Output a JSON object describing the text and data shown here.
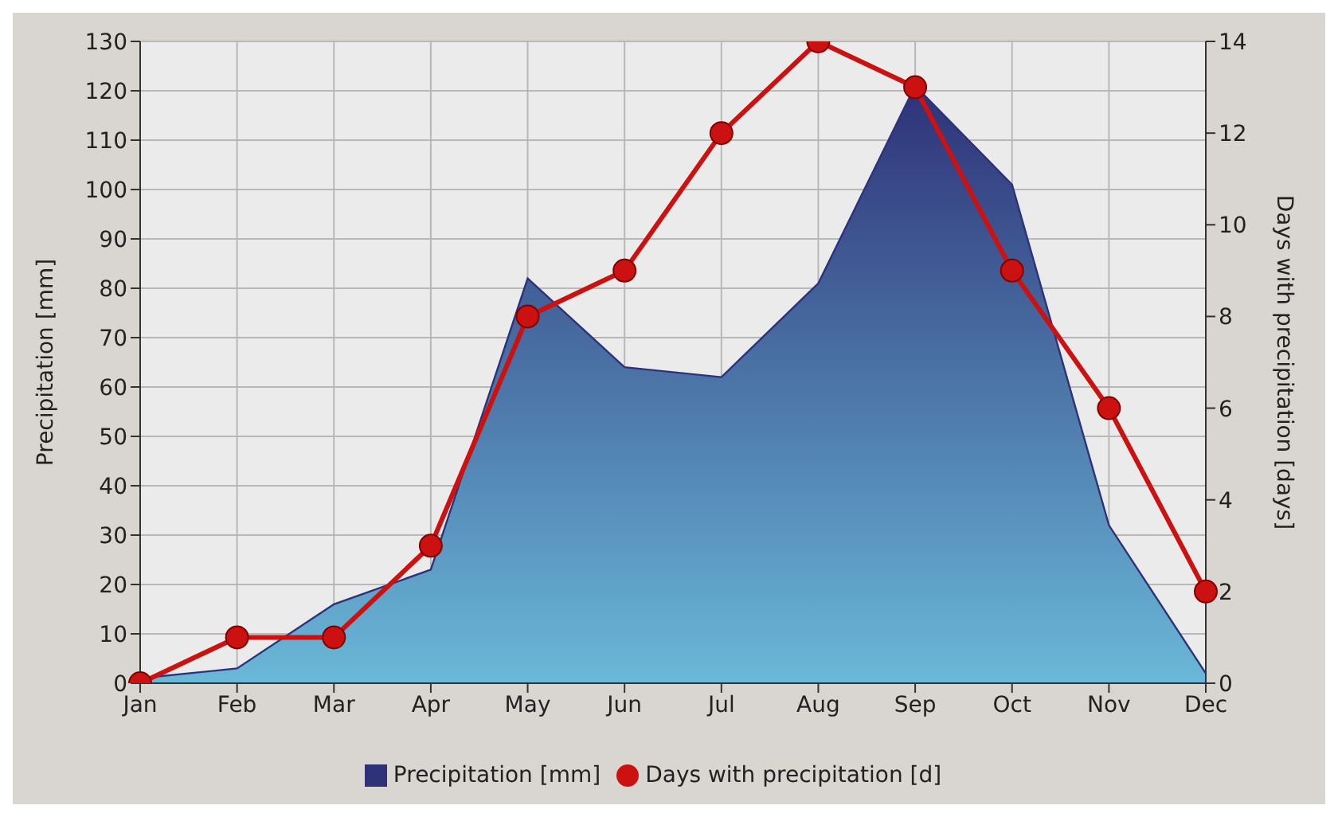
{
  "chart_data": {
    "type": "area",
    "categories": [
      "Jan",
      "Feb",
      "Mar",
      "Apr",
      "May",
      "Jun",
      "Jul",
      "Aug",
      "Sep",
      "Oct",
      "Nov",
      "Dec"
    ],
    "series": [
      {
        "name": "Precipitation [mm]",
        "color": "#2e3278",
        "values": [
          1,
          3,
          16,
          23,
          82,
          64,
          62,
          81,
          121,
          101,
          32,
          2
        ]
      },
      {
        "name": "Days with precipitation [d]",
        "type": "line",
        "axis": "y2",
        "color": "#cc1111",
        "marker": "circle",
        "values": [
          0,
          1,
          1,
          3,
          8,
          9,
          12,
          14,
          13,
          9,
          6,
          2
        ]
      }
    ],
    "ylabel": "Precipitation [mm]",
    "y2label": "Days with precipitation [days]",
    "ylim": [
      0,
      130
    ],
    "yticks": [
      0,
      10,
      20,
      30,
      40,
      50,
      60,
      70,
      80,
      90,
      100,
      110,
      120,
      130
    ],
    "y2lim": [
      0,
      14
    ],
    "y2ticks": [
      0,
      2,
      4,
      6,
      8,
      10,
      12,
      14
    ],
    "grid": true,
    "legend": "bottom"
  }
}
